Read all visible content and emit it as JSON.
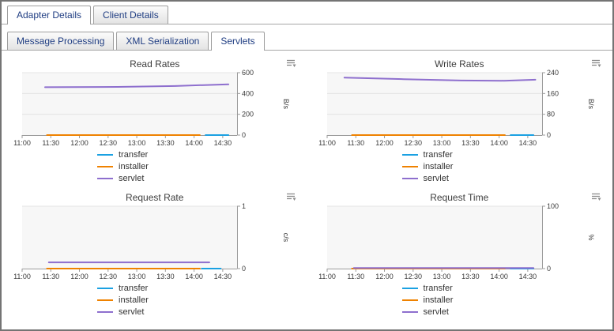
{
  "tabs": {
    "top": [
      {
        "label": "Adapter Details",
        "active": true
      },
      {
        "label": "Client Details",
        "active": false
      }
    ],
    "sub": [
      {
        "label": "Message Processing",
        "active": false
      },
      {
        "label": "XML Serialization",
        "active": false
      },
      {
        "label": "Servlets",
        "active": true
      }
    ]
  },
  "legend": [
    "transfer",
    "installer",
    "servlet"
  ],
  "colors": {
    "transfer": "#1ba1e2",
    "installer": "#ef8200",
    "servlet": "#8e6fce",
    "tab_text": "#1f3d82",
    "axis": "#9b9b9b",
    "grid": "#e4e4e4",
    "plot_bg": "#f7f7f7"
  },
  "icons": {
    "chart_menu": "menu-with-down-arrow"
  },
  "chart_data": [
    {
      "type": "line",
      "title": "Read Rates",
      "ylabel": "B/s",
      "ylim": [
        0,
        600
      ],
      "yticks": [
        0,
        200,
        400,
        600
      ],
      "x_ticks": [
        "11:00",
        "11:30",
        "12:00",
        "12:30",
        "13:00",
        "13:30",
        "14:00",
        "14:30"
      ],
      "legend_position": "bottom",
      "series": [
        {
          "name": "transfer",
          "points": [
            [
              852,
              0
            ],
            [
              876,
              0
            ]
          ]
        },
        {
          "name": "installer",
          "points": [
            [
              686,
              0
            ],
            [
              846,
              0
            ]
          ]
        },
        {
          "name": "servlet",
          "points": [
            [
              684,
              460
            ],
            [
              760,
              463
            ],
            [
              820,
              472
            ],
            [
              876,
              488
            ]
          ]
        }
      ]
    },
    {
      "type": "line",
      "title": "Write Rates",
      "ylabel": "B/s",
      "ylim": [
        0,
        240
      ],
      "yticks": [
        0,
        80,
        160,
        240
      ],
      "x_ticks": [
        "11:00",
        "11:30",
        "12:00",
        "12:30",
        "13:00",
        "13:30",
        "14:00",
        "14:30"
      ],
      "legend_position": "bottom",
      "series": [
        {
          "name": "transfer",
          "points": [
            [
              852,
              0
            ],
            [
              876,
              0
            ]
          ]
        },
        {
          "name": "installer",
          "points": [
            [
              686,
              0
            ],
            [
              846,
              0
            ]
          ]
        },
        {
          "name": "servlet",
          "points": [
            [
              678,
              221
            ],
            [
              740,
              215
            ],
            [
              800,
              210
            ],
            [
              845,
              209
            ],
            [
              878,
              213
            ]
          ]
        }
      ]
    },
    {
      "type": "line",
      "title": "Request Rate",
      "ylabel": "c/s",
      "ylim": [
        0,
        1
      ],
      "yticks": [
        0,
        1
      ],
      "x_ticks": [
        "11:00",
        "11:30",
        "12:00",
        "12:30",
        "13:00",
        "13:30",
        "14:00",
        "14:30"
      ],
      "legend_position": "bottom",
      "series": [
        {
          "name": "transfer",
          "points": [
            [
              848,
              0
            ],
            [
              868,
              0
            ]
          ]
        },
        {
          "name": "installer",
          "points": [
            [
              686,
              0
            ],
            [
              846,
              0
            ]
          ]
        },
        {
          "name": "servlet",
          "points": [
            [
              688,
              0.1
            ],
            [
              856,
              0.1
            ]
          ]
        }
      ]
    },
    {
      "type": "line",
      "title": "Request Time",
      "ylabel": "%",
      "ylim": [
        0,
        100
      ],
      "yticks": [
        0,
        100
      ],
      "x_ticks": [
        "11:00",
        "11:30",
        "12:00",
        "12:30",
        "13:00",
        "13:30",
        "14:00",
        "14:30"
      ],
      "legend_position": "bottom",
      "series": [
        {
          "name": "transfer",
          "points": [
            [
              852,
              0
            ],
            [
              876,
              0
            ]
          ]
        },
        {
          "name": "installer",
          "points": [
            [
              686,
              0
            ],
            [
              846,
              0
            ]
          ]
        },
        {
          "name": "servlet",
          "points": [
            [
              688,
              1
            ],
            [
              876,
              1
            ]
          ]
        }
      ]
    }
  ]
}
